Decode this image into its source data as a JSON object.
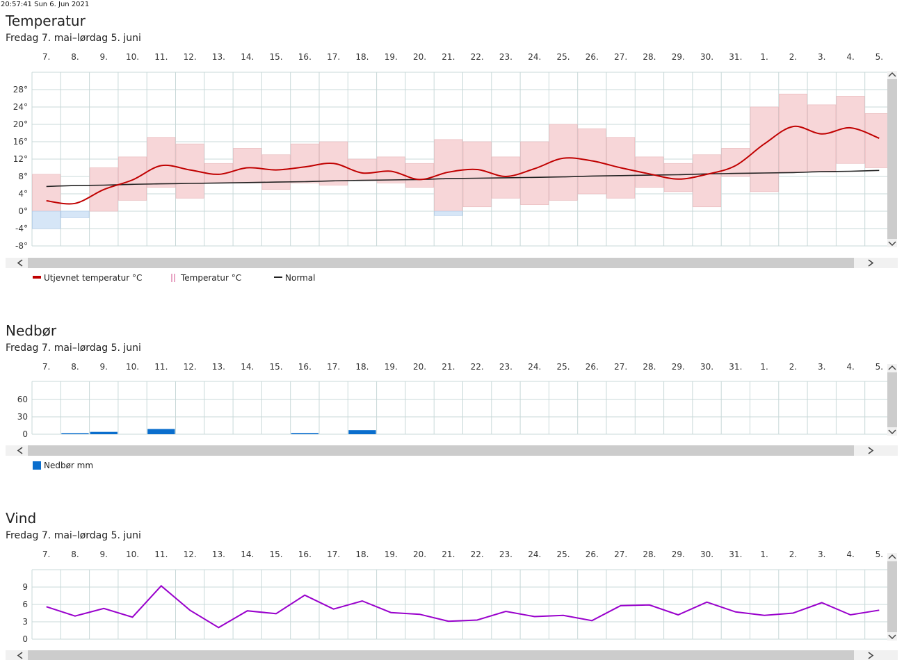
{
  "timestamp": "20:57:41 Sun 6. Jun 2021",
  "colors": {
    "smooth": "#c00000",
    "normal": "#222222",
    "warm": "#f7d6d8",
    "warmStroke": "#e8b4b8",
    "cold": "#d6e6f7",
    "coldStroke": "#a9c6e8",
    "precip": "#0a6ecd",
    "wind": "#9900cc",
    "grid": "#c8d8d8",
    "scroll": "#cccccc"
  },
  "day_labels": [
    "7.",
    "8.",
    "9.",
    "10.",
    "11.",
    "12.",
    "13.",
    "14.",
    "15.",
    "16.",
    "17.",
    "18.",
    "19.",
    "20.",
    "21.",
    "22.",
    "23.",
    "24.",
    "25.",
    "26.",
    "27.",
    "28.",
    "29.",
    "30.",
    "31.",
    "1.",
    "2.",
    "3.",
    "4.",
    "5."
  ],
  "temperature": {
    "title": "Temperatur",
    "subtitle": "Fredag 7. mai–lørdag 5. juni",
    "legend": {
      "smooth": "Utjevnet temperatur °C",
      "range": "Temperatur °C",
      "normal": "Normal"
    },
    "chart_data": {
      "type": "line",
      "ylim": [
        -8,
        28
      ],
      "yticks": [
        28,
        24,
        20,
        16,
        12,
        8,
        4,
        0,
        -4,
        -8
      ],
      "ytick_labels": [
        "28°",
        "24°",
        "20°",
        "16°",
        "12°",
        "8°",
        "4°",
        "0°",
        "-4°",
        "-8°"
      ],
      "grid": true,
      "legend_position": "bottom-left",
      "x": [
        "7.",
        "8.",
        "9.",
        "10.",
        "11.",
        "12.",
        "13.",
        "14.",
        "15.",
        "16.",
        "17.",
        "18.",
        "19.",
        "20.",
        "21.",
        "22.",
        "23.",
        "24.",
        "25.",
        "26.",
        "27.",
        "28.",
        "29.",
        "30.",
        "31.",
        "1.",
        "2.",
        "3.",
        "4.",
        "5."
      ],
      "series": [
        {
          "name": "Temperatur °C",
          "max": [
            8.5,
            0.0,
            10.0,
            12.5,
            17.0,
            15.5,
            11.0,
            14.5,
            13.0,
            15.5,
            16.0,
            12.0,
            12.5,
            11.0,
            16.5,
            16.0,
            12.5,
            16.0,
            20.0,
            19.0,
            17.0,
            12.5,
            11.0,
            13.0,
            14.5,
            24.0,
            27.0,
            24.5,
            26.5,
            22.5
          ],
          "min": [
            -4.0,
            -1.5,
            -0.0,
            2.5,
            5.5,
            3.0,
            6.5,
            6.5,
            5.0,
            6.5,
            6.0,
            7.0,
            6.5,
            5.5,
            -1.0,
            1.0,
            3.0,
            1.5,
            2.5,
            4.0,
            3.0,
            5.5,
            4.5,
            1.0,
            8.0,
            4.5,
            9.0,
            9.0,
            11.0,
            10.0
          ]
        },
        {
          "name": "Utjevnet temperatur °C",
          "values": [
            2.4,
            1.8,
            5.0,
            7.2,
            10.5,
            9.5,
            8.5,
            10.0,
            9.5,
            10.2,
            11.0,
            8.8,
            9.2,
            7.3,
            9.0,
            9.6,
            8.0,
            9.8,
            12.2,
            11.6,
            10.0,
            8.6,
            7.4,
            8.5,
            10.5,
            15.5,
            19.5,
            17.8,
            19.2,
            16.8
          ]
        },
        {
          "name": "Normal",
          "values": [
            5.7,
            5.9,
            6.0,
            6.2,
            6.3,
            6.4,
            6.5,
            6.6,
            6.7,
            6.8,
            7.0,
            7.1,
            7.2,
            7.3,
            7.5,
            7.6,
            7.7,
            7.8,
            7.9,
            8.1,
            8.2,
            8.3,
            8.4,
            8.6,
            8.7,
            8.8,
            8.9,
            9.1,
            9.2,
            9.4
          ]
        }
      ]
    }
  },
  "precipitation": {
    "title": "Nedbør",
    "subtitle": "Fredag 7. mai–lørdag 5. juni",
    "legend": {
      "bars": "Nedbør mm"
    },
    "chart_data": {
      "type": "bar",
      "ylim": [
        0,
        90
      ],
      "yticks": [
        60,
        30,
        0
      ],
      "ytick_labels": [
        "60",
        "30",
        "0"
      ],
      "grid": true,
      "legend_position": "bottom-left",
      "categories": [
        "7.",
        "8.",
        "9.",
        "10.",
        "11.",
        "12.",
        "13.",
        "14.",
        "15.",
        "16.",
        "17.",
        "18.",
        "19.",
        "20.",
        "21.",
        "22.",
        "23.",
        "24.",
        "25.",
        "26.",
        "27.",
        "28.",
        "29.",
        "30.",
        "31.",
        "1.",
        "2.",
        "3.",
        "4.",
        "5."
      ],
      "series": [
        {
          "name": "Nedbør mm",
          "values": [
            0,
            1,
            4,
            0,
            9,
            0,
            0,
            0,
            0,
            2,
            0,
            7,
            0,
            0,
            0,
            0,
            0,
            0,
            0,
            0,
            0,
            0,
            0,
            0,
            0,
            0,
            0,
            0,
            0,
            0
          ]
        }
      ]
    }
  },
  "wind": {
    "title": "Vind",
    "subtitle": "Fredag 7. mai–lørdag 5. juni",
    "chart_data": {
      "type": "line",
      "ylim": [
        0,
        12
      ],
      "yticks": [
        9,
        6,
        3,
        0
      ],
      "ytick_labels": [
        "9",
        "6",
        "3",
        "0"
      ],
      "grid": true,
      "x": [
        "7.",
        "8.",
        "9.",
        "10.",
        "11.",
        "12.",
        "13.",
        "14.",
        "15.",
        "16.",
        "17.",
        "18.",
        "19.",
        "20.",
        "21.",
        "22.",
        "23.",
        "24.",
        "25.",
        "26.",
        "27.",
        "28.",
        "29.",
        "30.",
        "31.",
        "1.",
        "2.",
        "3.",
        "4.",
        "5."
      ],
      "series": [
        {
          "name": "",
          "values": [
            5.6,
            4.0,
            5.3,
            3.8,
            9.2,
            5.0,
            2.0,
            4.9,
            4.4,
            7.6,
            5.2,
            6.6,
            4.6,
            4.3,
            3.1,
            3.3,
            4.8,
            3.9,
            4.1,
            3.2,
            5.8,
            5.9,
            4.2,
            6.4,
            4.7,
            4.1,
            4.5,
            6.3,
            4.2,
            5.0
          ]
        }
      ]
    }
  }
}
